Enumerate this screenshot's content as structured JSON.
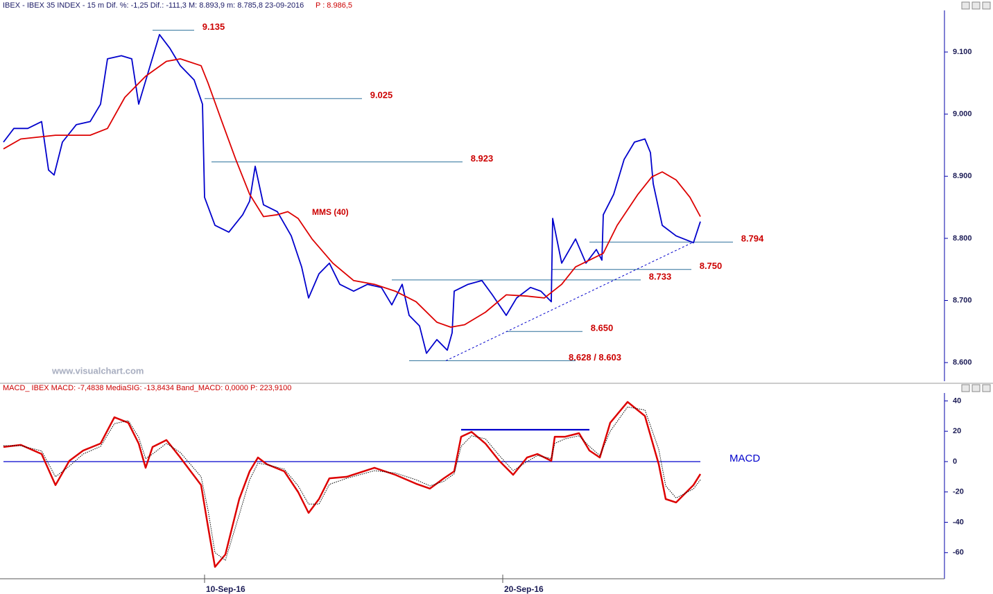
{
  "chart_data": [
    {
      "type": "line",
      "header": "IBEX - IBEX 35 INDEX - 15 m Dif. %: -1,25 Dif.: -111,3 M: 8.893,9 m: 8.785,8 23-09-2016",
      "header_price": "P : 8.986,5",
      "annotation": "MMS (40)",
      "watermark": "www.visualchart.com",
      "xlim": [
        0,
        1355
      ],
      "ylim": [
        8.57,
        9.167
      ],
      "yticks": [
        {
          "value": 8.6,
          "label": "8.600"
        },
        {
          "value": 8.7,
          "label": "8.700"
        },
        {
          "value": 8.8,
          "label": "8.800"
        },
        {
          "value": 8.9,
          "label": "8.900"
        },
        {
          "value": 9.0,
          "label": "9.000"
        },
        {
          "value": 9.1,
          "label": "9.100"
        }
      ],
      "series": [
        {
          "color": "#0000cc",
          "x": [
            0,
            15,
            35,
            55,
            65,
            73,
            85,
            105,
            125,
            140,
            150,
            170,
            185,
            195,
            207,
            225,
            240,
            255,
            275,
            287,
            290,
            305,
            325,
            345,
            355,
            363,
            375,
            395,
            415,
            430,
            440,
            455,
            470,
            485,
            505,
            525,
            545,
            560,
            575,
            585,
            600,
            610,
            625,
            640,
            647,
            650,
            670,
            690,
            705,
            725,
            740,
            760,
            775,
            790,
            792,
            805,
            825,
            840,
            855,
            863,
            865,
            880,
            895,
            910,
            925,
            933,
            937,
            950,
            970,
            995,
            1005
          ],
          "values": [
            8.955,
            8.977,
            8.977,
            8.988,
            8.91,
            8.902,
            8.955,
            8.983,
            8.988,
            9.016,
            9.089,
            9.094,
            9.089,
            9.016,
            9.061,
            9.128,
            9.106,
            9.078,
            9.055,
            9.016,
            8.866,
            8.821,
            8.81,
            8.838,
            8.86,
            8.916,
            8.854,
            8.843,
            8.804,
            8.754,
            8.704,
            8.743,
            8.76,
            8.726,
            8.715,
            8.726,
            8.721,
            8.693,
            8.726,
            8.676,
            8.659,
            8.615,
            8.637,
            8.62,
            8.648,
            8.715,
            8.726,
            8.732,
            8.709,
            8.676,
            8.704,
            8.721,
            8.715,
            8.698,
            8.832,
            8.76,
            8.799,
            8.76,
            8.782,
            8.765,
            8.838,
            8.871,
            8.927,
            8.955,
            8.96,
            8.938,
            8.888,
            8.821,
            8.804,
            8.793,
            8.827
          ]
        },
        {
          "color": "#dd0000",
          "x": [
            0,
            25,
            75,
            125,
            150,
            175,
            205,
            235,
            255,
            285,
            295,
            315,
            335,
            355,
            375,
            395,
            410,
            425,
            445,
            475,
            505,
            535,
            565,
            595,
            625,
            645,
            665,
            695,
            725,
            755,
            780,
            805,
            825,
            845,
            865,
            885,
            915,
            935,
            950,
            970,
            990,
            1005
          ],
          "values": [
            8.944,
            8.96,
            8.966,
            8.966,
            8.977,
            9.027,
            9.061,
            9.085,
            9.089,
            9.078,
            9.05,
            8.988,
            8.927,
            8.871,
            8.835,
            8.838,
            8.843,
            8.832,
            8.799,
            8.76,
            8.732,
            8.726,
            8.715,
            8.698,
            8.665,
            8.657,
            8.661,
            8.681,
            8.709,
            8.707,
            8.704,
            8.726,
            8.754,
            8.765,
            8.776,
            8.821,
            8.871,
            8.899,
            8.907,
            8.894,
            8.866,
            8.835
          ]
        }
      ],
      "levels": [
        {
          "value": 9.135,
          "label": "9.135",
          "x": [
            215,
            275
          ]
        },
        {
          "value": 9.025,
          "label": "9.025",
          "x": [
            290,
            517
          ]
        },
        {
          "value": 8.923,
          "label": "8.923",
          "x": [
            300,
            662
          ]
        },
        {
          "value": 8.794,
          "label": "8.794",
          "x": [
            845,
            1052
          ]
        },
        {
          "value": 8.75,
          "label": "8.750",
          "x": [
            790,
            992
          ]
        },
        {
          "value": 8.733,
          "label": "8.733",
          "x": [
            560,
            919
          ]
        },
        {
          "value": 8.65,
          "label": "8.650",
          "x": [
            725,
            835
          ]
        },
        {
          "value": 8.603,
          "label": "8.628 / 8.603",
          "x": [
            585,
            825
          ]
        }
      ],
      "trendline": {
        "x": [
          638,
          995
        ],
        "values": [
          8.603,
          8.794
        ]
      }
    },
    {
      "type": "line",
      "header": "MACD_ IBEX MACD: -7,4838 MediaSIG: -13,8434 Band_MACD: 0,0000 P: 223,9100",
      "label": "MACD",
      "xlim": [
        0,
        1355
      ],
      "ylim": [
        -77.2,
        45.2
      ],
      "yticks": [
        -60,
        -40,
        -20,
        0,
        20,
        40
      ],
      "xticks": [
        {
          "value": 290,
          "label": "10-Sep-16"
        },
        {
          "value": 720,
          "label": "20-Sep-16"
        }
      ],
      "series": [
        {
          "color": "#dd0000",
          "x": [
            0,
            25,
            55,
            75,
            95,
            115,
            140,
            160,
            180,
            195,
            205,
            215,
            235,
            255,
            285,
            295,
            305,
            320,
            340,
            355,
            367,
            380,
            405,
            425,
            440,
            455,
            470,
            495,
            535,
            565,
            595,
            615,
            635,
            650,
            660,
            675,
            695,
            715,
            735,
            755,
            770,
            790,
            795,
            810,
            830,
            845,
            860,
            875,
            900,
            925,
            945,
            955,
            970,
            995,
            1005
          ],
          "values": [
            9.6,
            11.0,
            5.0,
            -15.5,
            0.5,
            7.3,
            11.9,
            29.2,
            25.6,
            11.9,
            -4.1,
            9.6,
            14.2,
            2.7,
            -15.5,
            -42.9,
            -69.4,
            -61.2,
            -24.7,
            -6.4,
            2.7,
            -1.8,
            -6.4,
            -20.1,
            -33.8,
            -24.7,
            -11.0,
            -10.0,
            -4.1,
            -8.7,
            -14.6,
            -17.8,
            -11.0,
            -6.4,
            16.4,
            19.6,
            11.9,
            0.5,
            -8.7,
            2.7,
            5.0,
            0.5,
            16.4,
            16.4,
            18.7,
            7.3,
            2.7,
            25.6,
            39.3,
            30.1,
            -1.8,
            -24.7,
            -26.9,
            -15.5,
            -8.2
          ]
        },
        {
          "color": "#000000",
          "x": [
            0,
            25,
            55,
            75,
            95,
            115,
            140,
            160,
            180,
            195,
            205,
            215,
            235,
            255,
            285,
            295,
            305,
            320,
            340,
            355,
            367,
            380,
            405,
            425,
            440,
            455,
            470,
            495,
            535,
            565,
            595,
            615,
            635,
            650,
            660,
            675,
            695,
            715,
            735,
            755,
            770,
            790,
            795,
            810,
            830,
            845,
            860,
            875,
            900,
            925,
            945,
            955,
            970,
            995,
            1005
          ],
          "values": [
            10.5,
            10.5,
            7,
            -10,
            -3,
            5,
            10,
            25,
            27,
            16,
            2,
            5,
            12,
            6,
            -10,
            -32,
            -60,
            -65,
            -35,
            -12,
            -1,
            -2,
            -5,
            -16,
            -28,
            -28,
            -15,
            -11,
            -6,
            -7.5,
            -12,
            -16,
            -13,
            -8,
            10,
            17,
            15,
            4,
            -6,
            0,
            4,
            2,
            12,
            15,
            17,
            10,
            4,
            20,
            36,
            34,
            8,
            -16,
            -24,
            -18,
            -12
          ]
        }
      ],
      "zero_line": {
        "value": 0,
        "x": [
          0,
          1005
        ]
      },
      "levels": [
        {
          "value": 21,
          "x": [
            660,
            845
          ]
        }
      ]
    }
  ]
}
